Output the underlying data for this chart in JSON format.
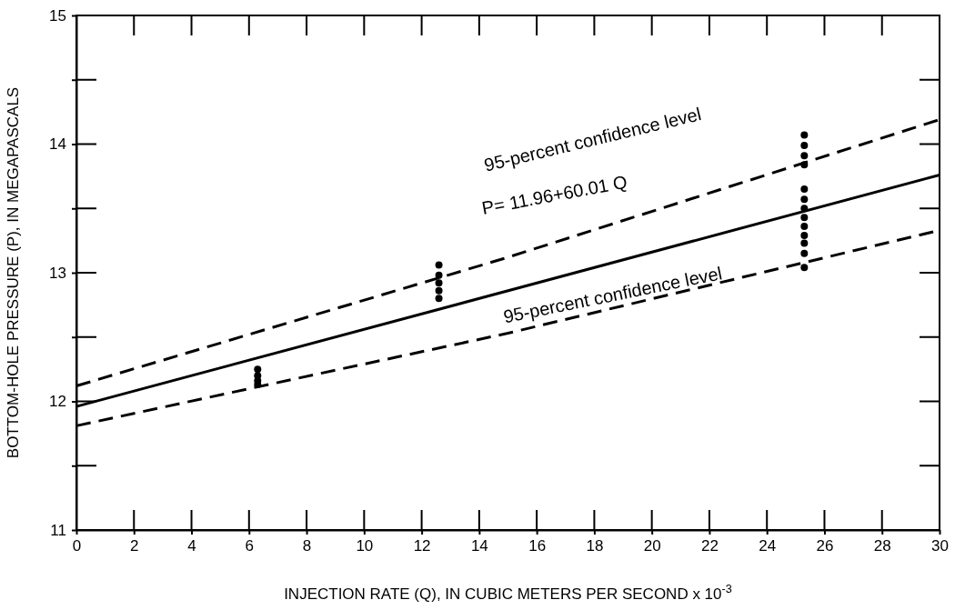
{
  "chart_data": {
    "type": "line",
    "xlabel": "INJECTION RATE  (Q), IN CUBIC METERS PER SECOND x 10$^{-3}$",
    "ylabel": "BOTTOM-HOLE PRESSURE  (P), IN MEGAPASCALS",
    "xlim": [
      0,
      30
    ],
    "ylim": [
      11,
      15
    ],
    "xticks": [
      0,
      2,
      4,
      6,
      8,
      10,
      12,
      14,
      16,
      18,
      20,
      22,
      24,
      26,
      28,
      30
    ],
    "yticks": [
      11,
      {
        "value": 11.5,
        "label": null
      },
      12,
      {
        "value": 12.5,
        "label": null
      },
      13,
      {
        "value": 13.5,
        "label": null
      },
      14,
      {
        "value": 14.5,
        "label": null
      },
      15
    ],
    "grid": false,
    "series": [
      {
        "color": "#000000",
        "line_style": "dashed",
        "x": [
          0,
          15,
          30
        ],
        "values": [
          12.12,
          13.12,
          14.19
        ]
      },
      {
        "color": "#000000",
        "line_style": "solid",
        "x": [
          0,
          30
        ],
        "values": [
          11.96,
          13.76
        ]
      },
      {
        "color": "#000000",
        "line_style": "dashed",
        "x": [
          0,
          15,
          30
        ],
        "values": [
          11.81,
          12.53,
          13.33
        ]
      },
      {
        "type": "scatter",
        "color": "#000000",
        "marker": "circle",
        "x": [
          6.3,
          6.3,
          6.3,
          6.3,
          12.6,
          12.6,
          12.6,
          12.6,
          12.6,
          25.3,
          25.3,
          25.3,
          25.3,
          25.3,
          25.3,
          25.3,
          25.3,
          25.3,
          25.3,
          25.3,
          25.3,
          25.3
        ],
        "values": [
          12.25,
          12.2,
          12.16,
          12.13,
          13.06,
          12.98,
          12.92,
          12.86,
          12.8,
          14.07,
          13.99,
          13.91,
          13.84,
          13.65,
          13.57,
          13.5,
          13.43,
          13.36,
          13.29,
          13.23,
          13.15,
          13.04
        ]
      }
    ],
    "annotations": [
      "95-percent confidence level",
      "P= 11.96+60.01 Q",
      "95-percent confidence level"
    ]
  }
}
